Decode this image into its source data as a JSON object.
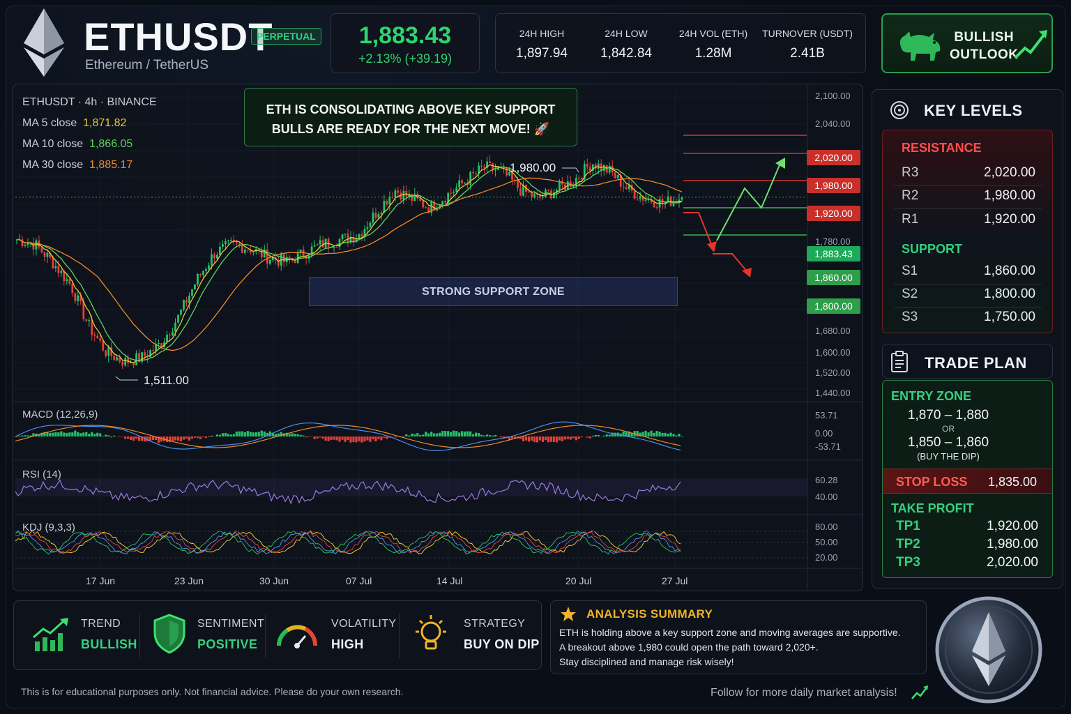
{
  "header": {
    "symbol": "ETHUSDT",
    "badge": "PERPETUAL",
    "name": "Ethereum / TetherUS",
    "price": "1,883.43",
    "change": "+2.13% (+39.19)",
    "stats": [
      {
        "label": "24H HIGH",
        "value": "1,897.94"
      },
      {
        "label": "24H LOW",
        "value": "1,842.84"
      },
      {
        "label": "24H VOL (ETH)",
        "value": "1.28M"
      },
      {
        "label": "TURNOVER (USDT)",
        "value": "2.41B"
      }
    ],
    "outlook_line1": "BULLISH",
    "outlook_line2": "OUTLOOK"
  },
  "chart": {
    "title": "ETHUSDT · 4h · BINANCE",
    "ma": [
      {
        "label": "MA 5 close",
        "value": "1,871.82",
        "color": "#e8c930"
      },
      {
        "label": "MA 10 close",
        "value": "1,866.05",
        "color": "#5fd35f"
      },
      {
        "label": "MA 30 close",
        "value": "1,885.17",
        "color": "#f0892a"
      }
    ],
    "callout_line1": "ETH IS CONSOLIDATING ABOVE KEY SUPPORT",
    "callout_line2": "BULLS ARE READY FOR THE NEXT MOVE! 🚀",
    "support_zone": "STRONG SUPPORT ZONE",
    "high_annotation": "1,980.00",
    "low_annotation": "1,511.00",
    "price_ticks": [
      "2,100.00",
      "2,040.00",
      "1,780.00",
      "1,680.00",
      "1,600.00",
      "1,520.00",
      "1,440.00"
    ],
    "level_tags": {
      "r3": "2,020.00",
      "r2": "1,980.00",
      "r1": "1,920.00",
      "current": "1,883.43",
      "s1": "1,860.00",
      "s2": "1,800.00"
    },
    "macd_label": "MACD (12,26,9)",
    "macd_ticks": [
      "53.71",
      "0.00",
      "-53.71"
    ],
    "rsi_label": "RSI (14)",
    "rsi_ticks": [
      "60.28",
      "40.00"
    ],
    "kdj_label": "KDJ (9,3,3)",
    "kdj_ticks": [
      "80.00",
      "50.00",
      "20.00"
    ],
    "x_ticks": [
      "17 Jun",
      "23 Jun",
      "30 Jun",
      "07 Jul",
      "14 Jul",
      "20 Jul",
      "27 Jul"
    ]
  },
  "chart_data": {
    "type": "candlestick",
    "title": "ETHUSDT · 4h · BINANCE",
    "x": [
      "17 Jun",
      "23 Jun",
      "30 Jun",
      "07 Jul",
      "14 Jul",
      "20 Jul",
      "27 Jul"
    ],
    "close_path": [
      1790,
      1780,
      1740,
      1690,
      1600,
      1540,
      1520,
      1530,
      1560,
      1620,
      1700,
      1760,
      1780,
      1770,
      1750,
      1740,
      1760,
      1780,
      1790,
      1800,
      1850,
      1900,
      1880,
      1860,
      1890,
      1920,
      1950,
      1940,
      1900,
      1880,
      1900,
      1920,
      1960,
      1940,
      1900,
      1880,
      1870,
      1883.43
    ],
    "ylim": [
      1440,
      2100
    ],
    "annotations": {
      "swing_high": 1980.0,
      "swing_low": 1511.0
    },
    "levels": {
      "resistance": [
        2020.0,
        1980.0,
        1920.0
      ],
      "support": [
        1860.0,
        1800.0
      ],
      "last_price": 1883.43
    }
  },
  "key_levels": {
    "title": "KEY LEVELS",
    "resistance_label": "RESISTANCE",
    "resistance": [
      {
        "name": "R3",
        "price": "2,020.00"
      },
      {
        "name": "R2",
        "price": "1,980.00"
      },
      {
        "name": "R1",
        "price": "1,920.00"
      }
    ],
    "support_label": "SUPPORT",
    "support": [
      {
        "name": "S1",
        "price": "1,860.00"
      },
      {
        "name": "S2",
        "price": "1,800.00"
      },
      {
        "name": "S3",
        "price": "1,750.00"
      }
    ]
  },
  "trade_plan": {
    "title": "TRADE PLAN",
    "entry_label": "ENTRY ZONE",
    "entry_range_1": "1,870 – 1,880",
    "or_text": "OR",
    "entry_range_2": "1,850 – 1,860",
    "entry_note": "(BUY THE DIP)",
    "stop_label": "STOP LOSS",
    "stop_value": "1,835.00",
    "tp_label": "TAKE PROFIT",
    "targets": [
      {
        "name": "TP1",
        "price": "1,920.00"
      },
      {
        "name": "TP2",
        "price": "1,980.00"
      },
      {
        "name": "TP3",
        "price": "2,020.00"
      }
    ]
  },
  "metrics": [
    {
      "label": "TREND",
      "value": "BULLISH",
      "color": "#35d07f"
    },
    {
      "label": "SENTIMENT",
      "value": "POSITIVE",
      "color": "#35d07f"
    },
    {
      "label": "VOLATILITY",
      "value": "HIGH",
      "color": "#eef0f4"
    },
    {
      "label": "STRATEGY",
      "value": "BUY ON DIP",
      "color": "#eef0f4"
    }
  ],
  "summary": {
    "title": "ANALYSIS SUMMARY",
    "lines": [
      "ETH is holding above a key support zone and moving averages are supportive.",
      "A breakout above 1,980 could open the path toward 2,020+.",
      "Stay disciplined and manage risk wisely!"
    ]
  },
  "footer": {
    "disclaimer": "This is for educational purposes only. Not financial advice. Please do your own research.",
    "follow": "Follow for more daily market analysis!"
  }
}
